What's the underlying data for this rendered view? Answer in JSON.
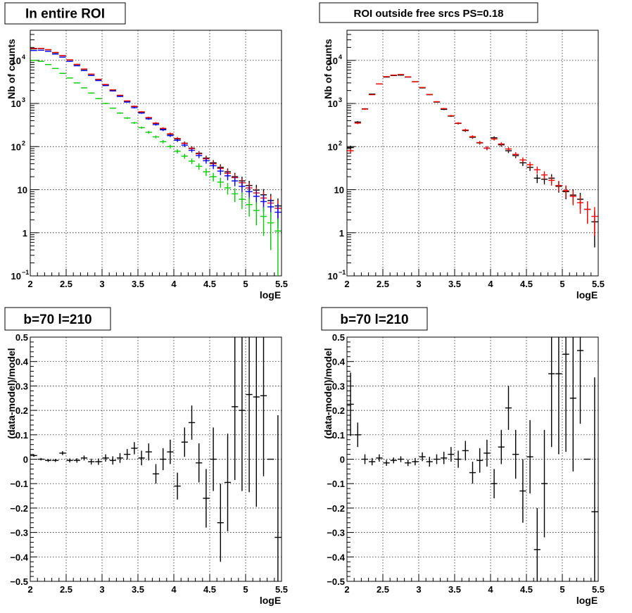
{
  "chart_data": [
    {
      "type": "scatter",
      "title": "In entire ROI",
      "xlabel": "logE",
      "ylabel": "Nb of counts",
      "xlim": [
        2,
        5.5
      ],
      "ylim": [
        0.1,
        50000
      ],
      "log_y": true,
      "grid": true,
      "xticks": [
        "2",
        "2.5",
        "3",
        "3.5",
        "4",
        "4.5",
        "5",
        "5.5"
      ],
      "yticks": [
        {
          "value": 0.1,
          "mantissa": "10",
          "exp": "−1"
        },
        {
          "value": 1,
          "mantissa": "1",
          "exp": ""
        },
        {
          "value": 10,
          "mantissa": "10",
          "exp": ""
        },
        {
          "value": 100,
          "mantissa": "10",
          "exp": "2"
        },
        {
          "value": 1000,
          "mantissa": "10",
          "exp": "3"
        },
        {
          "value": 10000,
          "mantissa": "10",
          "exp": "4"
        }
      ],
      "series": [
        {
          "color": "#000000",
          "x": [
            2.05,
            2.15,
            2.25,
            2.35,
            2.45,
            2.55,
            2.65,
            2.75,
            2.85,
            2.95,
            3.05,
            3.15,
            3.25,
            3.35,
            3.45,
            3.55,
            3.65,
            3.75,
            3.85,
            3.95,
            4.05,
            4.15,
            4.25,
            4.35,
            4.45,
            4.55,
            4.65,
            4.75,
            4.85,
            4.95,
            5.05,
            5.15,
            5.25,
            5.35,
            5.45
          ],
          "y": [
            18500,
            18800,
            17600,
            15000,
            12800,
            10200,
            8000,
            6200,
            4750,
            3600,
            2720,
            2050,
            1530,
            1130,
            850,
            630,
            465,
            345,
            258,
            192,
            150,
            120,
            92,
            70,
            54,
            42,
            33,
            26,
            20,
            16,
            12.5,
            9.8,
            7.6,
            5.6,
            4.2
          ]
        },
        {
          "color": "#ff0000",
          "x": [
            2.05,
            2.15,
            2.25,
            2.35,
            2.45,
            2.55,
            2.65,
            2.75,
            2.85,
            2.95,
            3.05,
            3.15,
            3.25,
            3.35,
            3.45,
            3.55,
            3.65,
            3.75,
            3.85,
            3.95,
            4.05,
            4.15,
            4.25,
            4.35,
            4.45,
            4.55,
            4.65,
            4.75,
            4.85,
            4.95,
            5.05,
            5.15,
            5.25,
            5.35,
            5.45
          ],
          "y": [
            19000,
            19000,
            17800,
            15300,
            12900,
            10300,
            8100,
            6300,
            4800,
            3650,
            2760,
            2080,
            1550,
            1150,
            860,
            640,
            470,
            350,
            265,
            198,
            154,
            118,
            90,
            68,
            52,
            40,
            31,
            24,
            19,
            14.5,
            11,
            8.4,
            6.4,
            4.9,
            3.7
          ]
        },
        {
          "color": "#0000ff",
          "x": [
            2.05,
            2.15,
            2.25,
            2.35,
            2.45,
            2.55,
            2.65,
            2.75,
            2.85,
            2.95,
            3.05,
            3.15,
            3.25,
            3.35,
            3.45,
            3.55,
            3.65,
            3.75,
            3.85,
            3.95,
            4.05,
            4.15,
            4.25,
            4.35,
            4.45,
            4.55,
            4.65,
            4.75,
            4.85,
            4.95,
            5.05,
            5.15,
            5.25,
            5.35,
            5.45
          ],
          "y": [
            17000,
            17200,
            16200,
            14000,
            11900,
            9500,
            7500,
            5800,
            4450,
            3400,
            2600,
            1960,
            1460,
            1080,
            800,
            600,
            440,
            325,
            245,
            180,
            140,
            108,
            82,
            62,
            47,
            36,
            27,
            21,
            16,
            12,
            9,
            7,
            5.3,
            4,
            3
          ]
        },
        {
          "color": "#00cc00",
          "x": [
            2.05,
            2.15,
            2.25,
            2.35,
            2.45,
            2.55,
            2.65,
            2.75,
            2.85,
            2.95,
            3.05,
            3.15,
            3.25,
            3.35,
            3.45,
            3.55,
            3.65,
            3.75,
            3.85,
            3.95,
            4.05,
            4.15,
            4.25,
            4.35,
            4.45,
            4.55,
            4.65,
            4.75,
            4.85,
            4.95,
            5.05,
            5.15,
            5.25,
            5.35,
            5.45
          ],
          "y": [
            10000,
            9500,
            8000,
            6500,
            5000,
            3900,
            3000,
            2300,
            1750,
            1300,
            1000,
            780,
            600,
            460,
            355,
            275,
            215,
            168,
            130,
            100,
            78,
            60,
            46,
            35,
            26,
            20,
            15,
            11,
            8,
            6,
            4.5,
            3.3,
            2.4,
            1.7,
            1.1
          ]
        }
      ]
    },
    {
      "type": "scatter",
      "title": "ROI outside free srcs PS=0.18",
      "xlabel": "logE",
      "ylabel": "Nb of counts",
      "xlim": [
        2,
        5.5
      ],
      "ylim": [
        0.1,
        50000
      ],
      "log_y": true,
      "grid": true,
      "xticks": [
        "2",
        "2.5",
        "3",
        "3.5",
        "4",
        "4.5",
        "5",
        "5.5"
      ],
      "yticks": [
        {
          "value": 0.1,
          "mantissa": "10",
          "exp": "−1"
        },
        {
          "value": 1,
          "mantissa": "1",
          "exp": ""
        },
        {
          "value": 10,
          "mantissa": "10",
          "exp": ""
        },
        {
          "value": 100,
          "mantissa": "10",
          "exp": "2"
        },
        {
          "value": 1000,
          "mantissa": "10",
          "exp": "3"
        },
        {
          "value": 10000,
          "mantissa": "10",
          "exp": "4"
        }
      ],
      "series": [
        {
          "color": "#000000",
          "x": [
            2.05,
            2.15,
            2.25,
            2.35,
            2.45,
            2.55,
            2.65,
            2.75,
            2.85,
            2.95,
            3.05,
            3.15,
            3.25,
            3.35,
            3.45,
            3.55,
            3.65,
            3.75,
            3.85,
            3.95,
            4.05,
            4.15,
            4.25,
            4.35,
            4.45,
            4.55,
            4.65,
            4.75,
            4.85,
            4.95,
            5.05,
            5.15,
            5.25,
            5.35,
            5.45
          ],
          "y": [
            95,
            370,
            750,
            1650,
            2850,
            4100,
            4450,
            4550,
            4100,
            3200,
            2300,
            1600,
            1080,
            730,
            510,
            345,
            235,
            165,
            122,
            92,
            160,
            110,
            80,
            62,
            42,
            33,
            18.5,
            17.5,
            18.5,
            12,
            9,
            7.5,
            6,
            3.5,
            1.8
          ]
        },
        {
          "color": "#ff0000",
          "x": [
            2.05,
            2.15,
            2.25,
            2.35,
            2.45,
            2.55,
            2.65,
            2.75,
            2.85,
            2.95,
            3.05,
            3.15,
            3.25,
            3.35,
            3.45,
            3.55,
            3.65,
            3.75,
            3.85,
            3.95,
            4.05,
            4.15,
            4.25,
            4.35,
            4.45,
            4.55,
            4.65,
            4.75,
            4.85,
            4.95,
            5.05,
            5.15,
            5.25,
            5.35,
            5.45
          ],
          "y": [
            80,
            350,
            740,
            1600,
            2850,
            4200,
            4550,
            4700,
            4150,
            3200,
            2350,
            1620,
            1100,
            760,
            520,
            350,
            242,
            170,
            124,
            92,
            150,
            115,
            88,
            66,
            49,
            38,
            29,
            22,
            16.5,
            12.5,
            9.5,
            7,
            5,
            3.5,
            2.4
          ]
        }
      ]
    },
    {
      "type": "scatter",
      "title": "b=70 l=210",
      "xlabel": "logE",
      "ylabel": "(data-model)/model",
      "xlim": [
        2,
        5.5
      ],
      "ylim": [
        -0.5,
        0.5
      ],
      "grid": true,
      "xticks": [
        "2",
        "2.5",
        "3",
        "3.5",
        "4",
        "4.5",
        "5",
        "5.5"
      ],
      "yticks": [
        "−0.5",
        "−0.4",
        "−0.3",
        "−0.2",
        "−0.1",
        "0",
        "0.1",
        "0.2",
        "0.3",
        "0.4",
        "0.5"
      ],
      "series": [
        {
          "color": "#000000",
          "x": [
            2.05,
            2.15,
            2.25,
            2.35,
            2.45,
            2.55,
            2.65,
            2.75,
            2.85,
            2.95,
            3.05,
            3.15,
            3.25,
            3.35,
            3.45,
            3.55,
            3.65,
            3.75,
            3.85,
            3.95,
            4.05,
            4.15,
            4.25,
            4.35,
            4.45,
            4.55,
            4.65,
            4.75,
            4.85,
            4.95,
            5.05,
            5.15,
            5.25,
            5.35,
            5.45
          ],
          "y": [
            0.015,
            0.0,
            -0.005,
            -0.005,
            0.025,
            -0.005,
            -0.005,
            0.005,
            -0.01,
            -0.01,
            0.005,
            -0.005,
            0.005,
            0.02,
            0.045,
            0.005,
            0.03,
            -0.06,
            0.0,
            0.03,
            -0.11,
            0.07,
            0.15,
            -0.015,
            -0.16,
            0.0,
            -0.26,
            -0.095,
            0.215,
            0.2,
            0.265,
            0.255,
            0.26,
            0.0,
            -0.32
          ],
          "err": [
            0.005,
            0.005,
            0.006,
            0.006,
            0.008,
            0.008,
            0.009,
            0.01,
            0.012,
            0.013,
            0.015,
            0.017,
            0.02,
            0.022,
            0.025,
            0.03,
            0.035,
            0.04,
            0.045,
            0.05,
            0.055,
            0.06,
            0.07,
            0.08,
            0.12,
            0.13,
            0.16,
            0.2,
            0.3,
            0.33,
            0.4,
            0.45,
            0.33,
            0.0,
            0.5
          ]
        }
      ]
    },
    {
      "type": "scatter",
      "title": "b=70 l=210",
      "xlabel": "logE",
      "ylabel": "(data-model)/model",
      "xlim": [
        2,
        5.5
      ],
      "ylim": [
        -0.5,
        0.5
      ],
      "grid": true,
      "xticks": [
        "2",
        "2.5",
        "3",
        "3.5",
        "4",
        "4.5",
        "5",
        "5.5"
      ],
      "yticks": [
        "−0.5",
        "−0.4",
        "−0.3",
        "−0.2",
        "−0.1",
        "0",
        "0.1",
        "0.2",
        "0.3",
        "0.4",
        "0.5"
      ],
      "series": [
        {
          "color": "#000000",
          "x": [
            2.05,
            2.15,
            2.25,
            2.35,
            2.45,
            2.55,
            2.65,
            2.75,
            2.85,
            2.95,
            3.05,
            3.15,
            3.25,
            3.35,
            3.45,
            3.55,
            3.65,
            3.75,
            3.85,
            3.95,
            4.05,
            4.15,
            4.25,
            4.35,
            4.45,
            4.55,
            4.65,
            4.75,
            4.85,
            4.95,
            5.05,
            5.15,
            5.25,
            5.35,
            5.45
          ],
          "y": [
            0.225,
            0.1,
            0.0,
            -0.01,
            0.005,
            -0.015,
            -0.005,
            0.0,
            -0.015,
            -0.01,
            0.01,
            -0.01,
            0.0,
            0.005,
            0.02,
            0.0,
            0.035,
            -0.055,
            -0.005,
            0.025,
            -0.1,
            0.05,
            0.21,
            0.02,
            -0.13,
            0.01,
            -0.37,
            -0.1,
            0.35,
            0.35,
            0.43,
            0.25,
            0.445,
            0.0,
            -0.215
          ],
          "err": [
            0.13,
            0.05,
            0.02,
            0.015,
            0.015,
            0.012,
            0.012,
            0.012,
            0.013,
            0.015,
            0.018,
            0.02,
            0.02,
            0.025,
            0.03,
            0.035,
            0.04,
            0.045,
            0.05,
            0.055,
            0.06,
            0.07,
            0.09,
            0.1,
            0.13,
            0.15,
            0.17,
            0.22,
            0.3,
            0.33,
            0.4,
            0.3,
            0.3,
            0.0,
            0.55
          ]
        }
      ]
    }
  ]
}
